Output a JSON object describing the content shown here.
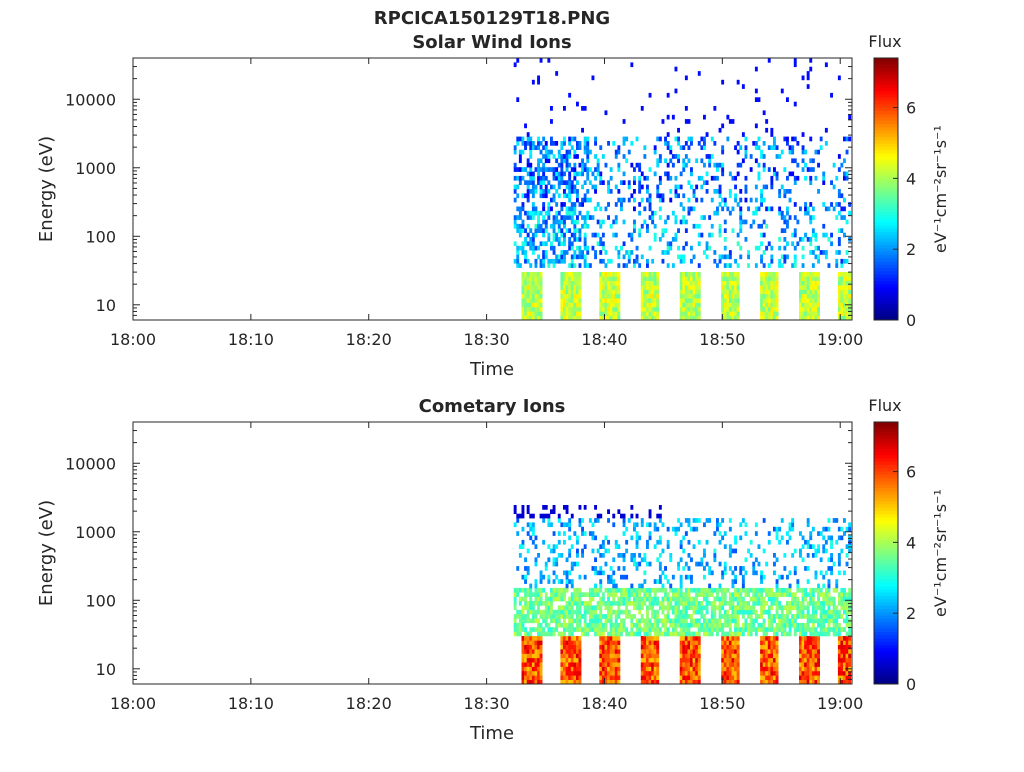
{
  "figure_title": "RPCICA150129T18.PNG",
  "colors": {
    "axis": "#262626",
    "background": "#ffffff",
    "colormap": "jet"
  },
  "chart_data": [
    {
      "type": "heatmap",
      "title": "Solar Wind Ions",
      "xlabel": "Time",
      "ylabel": "Energy (eV)",
      "x_ticks": [
        "18:00",
        "18:10",
        "18:20",
        "18:30",
        "18:40",
        "18:50",
        "19:00"
      ],
      "x_range_minutes": [
        0,
        61
      ],
      "y_scale": "log",
      "y_ticks": [
        "10",
        "100",
        "1000",
        "10000"
      ],
      "y_tick_values": [
        10,
        100,
        1000,
        10000
      ],
      "y_range": [
        6,
        40000
      ],
      "colorbar": {
        "label": "Flux",
        "units": "eV⁻¹cm⁻²sr⁻¹s⁻¹",
        "range": [
          0,
          7.4
        ],
        "ticks": [
          "0",
          "2",
          "4",
          "6"
        ],
        "tick_values": [
          0,
          2,
          4,
          6
        ]
      },
      "data_start_minute": 32.3,
      "sweep_start_minutes": [
        32.8,
        36.2,
        39.5,
        42.9,
        46.3,
        49.7,
        53.0,
        56.4,
        59.6
      ],
      "sweep_duration_minutes": 1.7,
      "low_energy_band_eV": [
        6,
        30
      ],
      "low_energy_band_flux": [
        3.5,
        4.8
      ],
      "high_energy_flux": [
        0.8,
        2.8
      ],
      "notes": "Spectrogram: bursts begin ~18:32; repeating energy sweeps every ~3.4 min"
    },
    {
      "type": "heatmap",
      "title": "Cometary Ions",
      "xlabel": "Time",
      "ylabel": "Energy (eV)",
      "x_ticks": [
        "18:00",
        "18:10",
        "18:20",
        "18:30",
        "18:40",
        "18:50",
        "19:00"
      ],
      "x_range_minutes": [
        0,
        61
      ],
      "y_scale": "log",
      "y_ticks": [
        "10",
        "100",
        "1000",
        "10000"
      ],
      "y_tick_values": [
        10,
        100,
        1000,
        10000
      ],
      "y_range": [
        6,
        40000
      ],
      "colorbar": {
        "label": "Flux",
        "units": "eV⁻¹cm⁻²sr⁻¹s⁻¹",
        "range": [
          0,
          7.4
        ],
        "ticks": [
          "0",
          "2",
          "4",
          "6"
        ],
        "tick_values": [
          0,
          2,
          4,
          6
        ]
      },
      "data_start_minute": 32.3,
      "sweep_start_minutes": [
        32.8,
        36.2,
        39.5,
        42.9,
        46.3,
        49.7,
        53.0,
        56.4,
        59.6
      ],
      "sweep_duration_minutes": 1.7,
      "low_energy_band_eV": [
        6,
        30
      ],
      "low_energy_band_flux": [
        5.0,
        6.8
      ],
      "mid_energy_band_eV": [
        30,
        150
      ],
      "mid_energy_band_flux": [
        3.0,
        4.2
      ],
      "high_energy_flux": [
        1.5,
        3.0
      ],
      "notes": "Spectrogram: strong low-energy flux 6-30 eV, diffuse 50-1500 eV tails"
    }
  ]
}
